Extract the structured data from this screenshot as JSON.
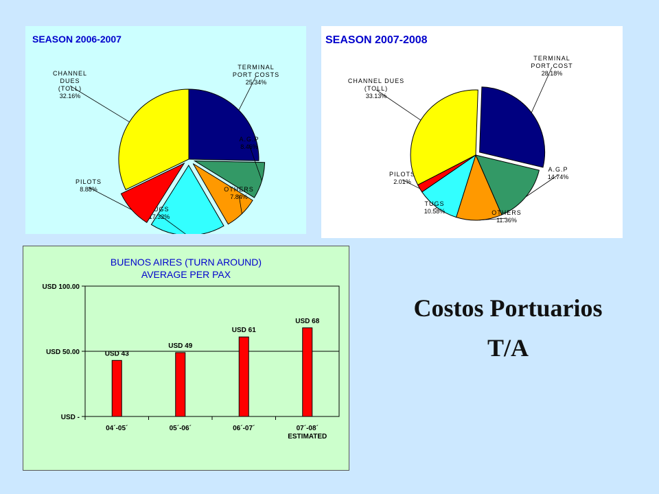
{
  "colors": {
    "background": "#cce8ff",
    "terminal": "#000080",
    "agp": "#339966",
    "others": "#ff9900",
    "tugs": "#33ffff",
    "pilots": "#ff0000",
    "channel": "#ffff00",
    "bar": "#ff0000",
    "title_blue": "#0000cc"
  },
  "heading": {
    "line1": "Costos Portuarios",
    "line2": "T/A"
  },
  "chart_data": [
    {
      "type": "pie",
      "title": "SEASON 2006-2007",
      "slices": [
        {
          "label_lines": [
            "TERMINAL",
            "PORT COSTS"
          ],
          "pct_label": "25.34%",
          "value": 25.34,
          "color_key": "terminal",
          "exploded": false
        },
        {
          "label_lines": [
            "A.G.P"
          ],
          "pct_label": "8.46%",
          "value": 8.46,
          "color_key": "agp",
          "exploded": true
        },
        {
          "label_lines": [
            "OTHERS"
          ],
          "pct_label": "7.84%",
          "value": 7.84,
          "color_key": "others",
          "exploded": true
        },
        {
          "label_lines": [
            "TUGS"
          ],
          "pct_label": "17.32%",
          "value": 17.32,
          "color_key": "tugs",
          "exploded": true
        },
        {
          "label_lines": [
            "PILOTS"
          ],
          "pct_label": "8.88%",
          "value": 8.88,
          "color_key": "pilots",
          "exploded": true
        },
        {
          "label_lines": [
            "CHANNEL",
            "DUES",
            "(TOLL)"
          ],
          "pct_label": "32.16%",
          "value": 32.16,
          "color_key": "channel",
          "exploded": false
        }
      ]
    },
    {
      "type": "pie",
      "title": "SEASON 2007-2008",
      "slices": [
        {
          "label_lines": [
            "TERMINAL",
            "PORT COST"
          ],
          "pct_label": "28.18%",
          "value": 28.18,
          "color_key": "terminal",
          "exploded": true
        },
        {
          "label_lines": [
            "A.G.P"
          ],
          "pct_label": "14.74%",
          "value": 14.74,
          "color_key": "agp",
          "exploded": false
        },
        {
          "label_lines": [
            "OTHERS"
          ],
          "pct_label": "11.36%",
          "value": 11.36,
          "color_key": "others",
          "exploded": false
        },
        {
          "label_lines": [
            "TUGS"
          ],
          "pct_label": "10.58%",
          "value": 10.58,
          "color_key": "tugs",
          "exploded": false
        },
        {
          "label_lines": [
            "PILOTS"
          ],
          "pct_label": "2.01%",
          "value": 2.01,
          "color_key": "pilots",
          "exploded": false
        },
        {
          "label_lines": [
            "CHANNEL DUES",
            "(TOLL)"
          ],
          "pct_label": "33.13%",
          "value": 33.13,
          "color_key": "channel",
          "exploded": false
        }
      ]
    },
    {
      "type": "bar",
      "title_lines": [
        "BUENOS AIRES (TURN AROUND)",
        "AVERAGE PER PAX"
      ],
      "categories": [
        {
          "lines": [
            "04´-05´"
          ]
        },
        {
          "lines": [
            "05´-06´"
          ]
        },
        {
          "lines": [
            "06´-07´"
          ]
        },
        {
          "lines": [
            "07´-08´",
            "ESTIMATED"
          ]
        }
      ],
      "values": [
        43,
        49,
        61,
        68
      ],
      "data_labels": [
        "USD 43",
        "USD 49",
        "USD 61",
        "USD 68"
      ],
      "ylim": [
        0,
        100
      ],
      "yticks": [
        {
          "value": 100,
          "label": "USD 100.00"
        },
        {
          "value": 50,
          "label": "USD 50.00"
        },
        {
          "value": 0,
          "label": "USD -"
        }
      ],
      "grid": true
    }
  ]
}
